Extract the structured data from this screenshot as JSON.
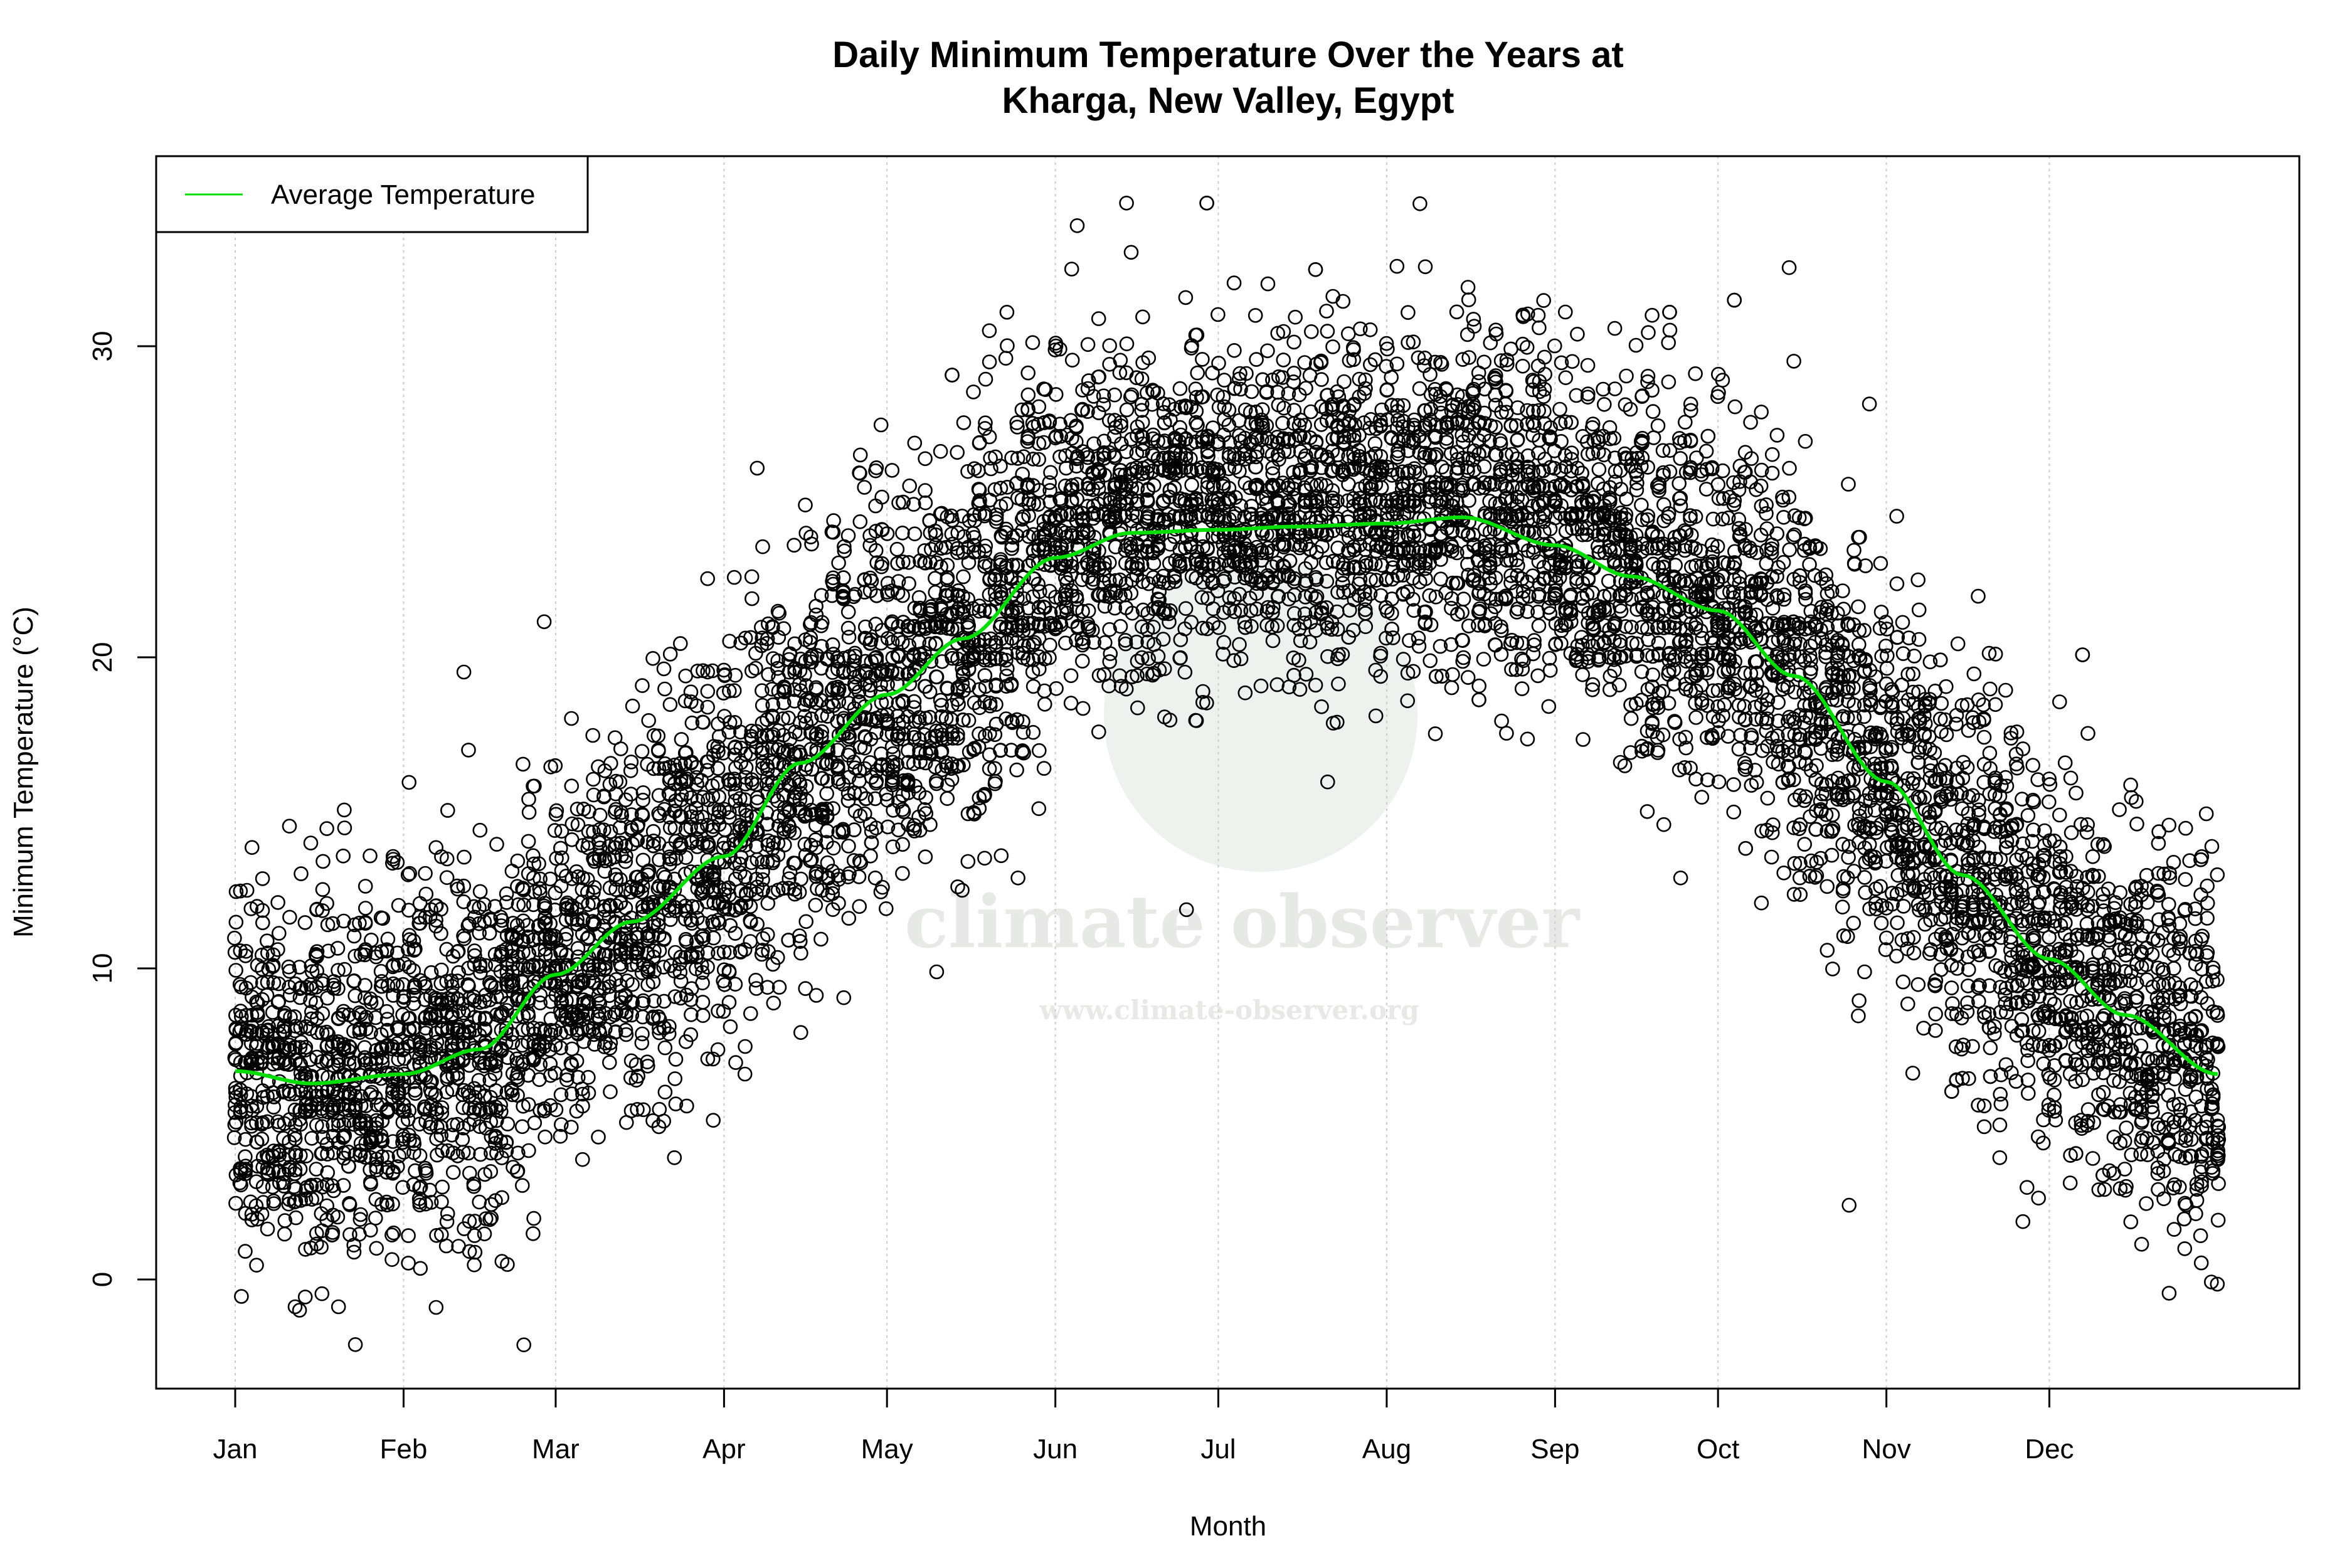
{
  "chart_data": {
    "type": "scatter",
    "title_lines": [
      "Daily Minimum Temperature Over the Years at",
      "Kharga, New Valley, Egypt"
    ],
    "xlabel": "Month",
    "ylabel": "Minimum Temperature (°C)",
    "x_unit": "day of year",
    "xlim": [
      1,
      366
    ],
    "ylim": [
      -3.5,
      36
    ],
    "x_ticks": [
      {
        "label": "Jan",
        "day": 1
      },
      {
        "label": "Feb",
        "day": 32
      },
      {
        "label": "Mar",
        "day": 60
      },
      {
        "label": "Apr",
        "day": 91
      },
      {
        "label": "May",
        "day": 121
      },
      {
        "label": "Jun",
        "day": 152
      },
      {
        "label": "Jul",
        "day": 182
      },
      {
        "label": "Aug",
        "day": 213
      },
      {
        "label": "Sep",
        "day": 244
      },
      {
        "label": "Oct",
        "day": 274
      },
      {
        "label": "Nov",
        "day": 305
      },
      {
        "label": "Dec",
        "day": 335
      }
    ],
    "y_ticks": [
      0,
      10,
      20,
      30
    ],
    "grid": "vertical dotted lines at month ticks",
    "legend": {
      "placement": "top-left",
      "entries": [
        {
          "label": "Average Temperature",
          "color": "#00dd00"
        }
      ]
    },
    "average_series": {
      "name": "Average Temperature",
      "color": "#00dd00",
      "days": [
        1,
        15,
        32,
        46,
        60,
        74,
        91,
        105,
        121,
        135,
        152,
        166,
        182,
        196,
        213,
        227,
        244,
        258,
        274,
        288,
        305,
        319,
        335,
        349,
        366
      ],
      "temps": [
        6.7,
        6.3,
        6.6,
        7.4,
        9.8,
        11.5,
        13.6,
        16.6,
        18.8,
        20.6,
        23.2,
        24.0,
        24.1,
        24.2,
        24.3,
        24.5,
        23.6,
        22.6,
        21.5,
        19.4,
        16.0,
        13.0,
        10.3,
        8.5,
        6.6
      ]
    },
    "scatter_series": {
      "marker": "open circle",
      "color": "#000000",
      "description_range": {
        "min": -2.1,
        "max": 34.6
      }
    }
  },
  "watermark": {
    "name": "climate observer",
    "url": "www.climate-observer.org"
  }
}
